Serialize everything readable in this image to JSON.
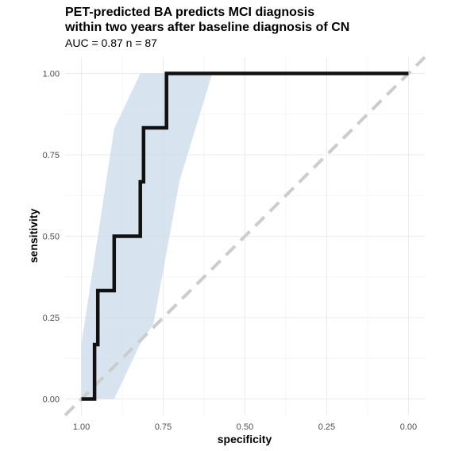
{
  "chart": {
    "title_line1": "PET-predicted BA predicts MCI diagnosis",
    "title_line2": "within two years after baseline diagnosis of CN",
    "subtitle": "AUC =  0.87 n =  87"
  },
  "chart_data": {
    "type": "line",
    "title": "PET-predicted BA predicts MCI diagnosis within two years after baseline diagnosis of CN",
    "subtitle": "AUC =  0.87 n =  87",
    "xlabel": "specificity",
    "ylabel": "sensitivity",
    "x_reversed": true,
    "xlim": [
      1.05,
      -0.05
    ],
    "ylim": [
      -0.05,
      1.05
    ],
    "x_ticks": [
      1.0,
      0.75,
      0.5,
      0.25,
      0.0
    ],
    "x_tick_labels": [
      "1.00",
      "0.75",
      "0.50",
      "0.25",
      "0.00"
    ],
    "y_ticks": [
      0.0,
      0.25,
      0.5,
      0.75,
      1.0
    ],
    "y_tick_labels": [
      "0.00",
      "0.25",
      "0.50",
      "0.75",
      "1.00"
    ],
    "grid": true,
    "series": [
      {
        "kind": "roc_curve",
        "color": "#111111",
        "x": [
          1.0,
          0.96,
          0.96,
          0.95,
          0.95,
          0.9,
          0.9,
          0.82,
          0.82,
          0.81,
          0.81,
          0.74,
          0.74,
          0.0
        ],
        "y": [
          0.0,
          0.0,
          0.167,
          0.167,
          0.333,
          0.333,
          0.5,
          0.5,
          0.667,
          0.667,
          0.833,
          0.833,
          1.0,
          1.0
        ]
      },
      {
        "kind": "confidence_band",
        "color": "#c6d9e8",
        "x": [
          1.0,
          0.9,
          0.82,
          0.74,
          0.6,
          0.6,
          0.7,
          0.78,
          0.82,
          0.9,
          1.0
        ],
        "upper": [
          0.17,
          0.83,
          1.0,
          1.0,
          1.0,
          1.0,
          0.67,
          0.23,
          0.17,
          0.0,
          0.0
        ],
        "lower_x": [
          1.0,
          0.9,
          0.82,
          0.78,
          0.7,
          0.6
        ]
      },
      {
        "kind": "reference_diagonal",
        "color": "#cccccc",
        "style": "dashed",
        "x": [
          1.05,
          -0.05
        ],
        "y": [
          -0.05,
          1.05
        ]
      }
    ]
  }
}
